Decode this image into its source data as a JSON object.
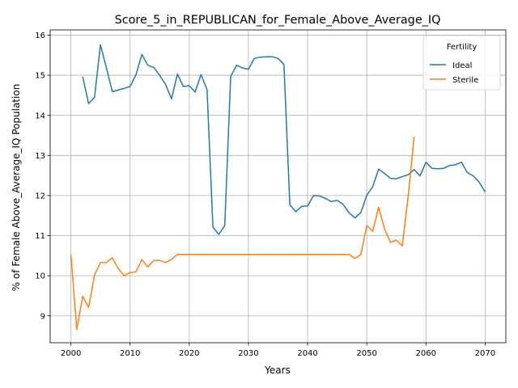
{
  "chart_data": {
    "type": "line",
    "title": "Score_5_in_REPUBLICAN_for_Female_Above_Average_IQ",
    "xlabel": "Years",
    "ylabel": "% of Female Above_Average_IQ Population",
    "xlim": [
      1996.5,
      2073.5
    ],
    "ylim": [
      8.33,
      16.13
    ],
    "x_ticks": [
      2000,
      2010,
      2020,
      2030,
      2040,
      2050,
      2060,
      2070
    ],
    "y_ticks": [
      9,
      10,
      11,
      12,
      13,
      14,
      15,
      16
    ],
    "grid": true,
    "legend": {
      "title": "Fertility",
      "position": "top-right"
    },
    "series": [
      {
        "name": "Ideal",
        "color": "#1f77b4",
        "points": [
          [
            2002,
            14.96
          ],
          [
            2003,
            14.29
          ],
          [
            2004,
            14.45
          ],
          [
            2005,
            15.76
          ],
          [
            2006,
            15.18
          ],
          [
            2007,
            14.59
          ],
          [
            2008,
            14.63
          ],
          [
            2009,
            14.67
          ],
          [
            2010,
            14.72
          ],
          [
            2011,
            15.01
          ],
          [
            2012,
            15.52
          ],
          [
            2013,
            15.25
          ],
          [
            2014,
            15.19
          ],
          [
            2015,
            15.0
          ],
          [
            2016,
            14.77
          ],
          [
            2017,
            14.41
          ],
          [
            2018,
            15.03
          ],
          [
            2019,
            14.72
          ],
          [
            2020,
            14.74
          ],
          [
            2021,
            14.58
          ],
          [
            2022,
            15.02
          ],
          [
            2023,
            14.64
          ],
          [
            2024,
            11.21
          ],
          [
            2025,
            11.03
          ],
          [
            2026,
            11.25
          ],
          [
            2027,
            14.97
          ],
          [
            2028,
            15.25
          ],
          [
            2029,
            15.18
          ],
          [
            2030,
            15.15
          ],
          [
            2031,
            15.42
          ],
          [
            2032,
            15.45
          ],
          [
            2033,
            15.46
          ],
          [
            2034,
            15.46
          ],
          [
            2035,
            15.42
          ],
          [
            2036,
            15.27
          ],
          [
            2037,
            11.77
          ],
          [
            2038,
            11.6
          ],
          [
            2039,
            11.73
          ],
          [
            2040,
            11.74
          ],
          [
            2041,
            12.0
          ],
          [
            2042,
            11.99
          ],
          [
            2043,
            11.93
          ],
          [
            2044,
            11.85
          ],
          [
            2045,
            11.88
          ],
          [
            2046,
            11.78
          ],
          [
            2047,
            11.57
          ],
          [
            2048,
            11.44
          ],
          [
            2049,
            11.58
          ],
          [
            2050,
            12.01
          ],
          [
            2051,
            12.22
          ],
          [
            2052,
            12.66
          ],
          [
            2053,
            12.55
          ],
          [
            2054,
            12.43
          ],
          [
            2055,
            12.42
          ],
          [
            2056,
            12.47
          ],
          [
            2057,
            12.52
          ],
          [
            2058,
            12.65
          ],
          [
            2059,
            12.49
          ],
          [
            2060,
            12.83
          ],
          [
            2061,
            12.68
          ],
          [
            2062,
            12.67
          ],
          [
            2063,
            12.68
          ],
          [
            2064,
            12.75
          ],
          [
            2065,
            12.77
          ],
          [
            2066,
            12.83
          ],
          [
            2067,
            12.57
          ],
          [
            2068,
            12.49
          ],
          [
            2069,
            12.33
          ],
          [
            2070,
            12.09
          ]
        ]
      },
      {
        "name": "Sterile",
        "color": "#ff7f0e",
        "points": [
          [
            2000,
            10.53
          ],
          [
            2001,
            8.66
          ],
          [
            2002,
            9.49
          ],
          [
            2003,
            9.21
          ],
          [
            2004,
            10.02
          ],
          [
            2005,
            10.33
          ],
          [
            2006,
            10.33
          ],
          [
            2007,
            10.45
          ],
          [
            2008,
            10.18
          ],
          [
            2009,
            10.0
          ],
          [
            2010,
            10.08
          ],
          [
            2011,
            10.1
          ],
          [
            2012,
            10.4
          ],
          [
            2013,
            10.22
          ],
          [
            2014,
            10.38
          ],
          [
            2015,
            10.38
          ],
          [
            2016,
            10.33
          ],
          [
            2017,
            10.41
          ],
          [
            2018,
            10.53
          ],
          [
            2019,
            10.53
          ],
          [
            2020,
            10.53
          ],
          [
            2021,
            10.53
          ],
          [
            2022,
            10.53
          ],
          [
            2023,
            10.53
          ],
          [
            2024,
            10.53
          ],
          [
            2025,
            10.53
          ],
          [
            2026,
            10.53
          ],
          [
            2027,
            10.53
          ],
          [
            2028,
            10.53
          ],
          [
            2029,
            10.53
          ],
          [
            2030,
            10.53
          ],
          [
            2031,
            10.53
          ],
          [
            2032,
            10.53
          ],
          [
            2033,
            10.53
          ],
          [
            2034,
            10.53
          ],
          [
            2035,
            10.53
          ],
          [
            2036,
            10.53
          ],
          [
            2037,
            10.53
          ],
          [
            2038,
            10.53
          ],
          [
            2039,
            10.53
          ],
          [
            2040,
            10.53
          ],
          [
            2041,
            10.53
          ],
          [
            2042,
            10.53
          ],
          [
            2043,
            10.53
          ],
          [
            2044,
            10.53
          ],
          [
            2045,
            10.53
          ],
          [
            2046,
            10.53
          ],
          [
            2047,
            10.53
          ],
          [
            2048,
            10.43
          ],
          [
            2049,
            10.53
          ],
          [
            2050,
            11.25
          ],
          [
            2051,
            11.11
          ],
          [
            2052,
            11.71
          ],
          [
            2053,
            11.17
          ],
          [
            2054,
            10.83
          ],
          [
            2055,
            10.89
          ],
          [
            2056,
            10.74
          ],
          [
            2057,
            12.0
          ],
          [
            2058,
            13.47
          ]
        ]
      }
    ]
  }
}
